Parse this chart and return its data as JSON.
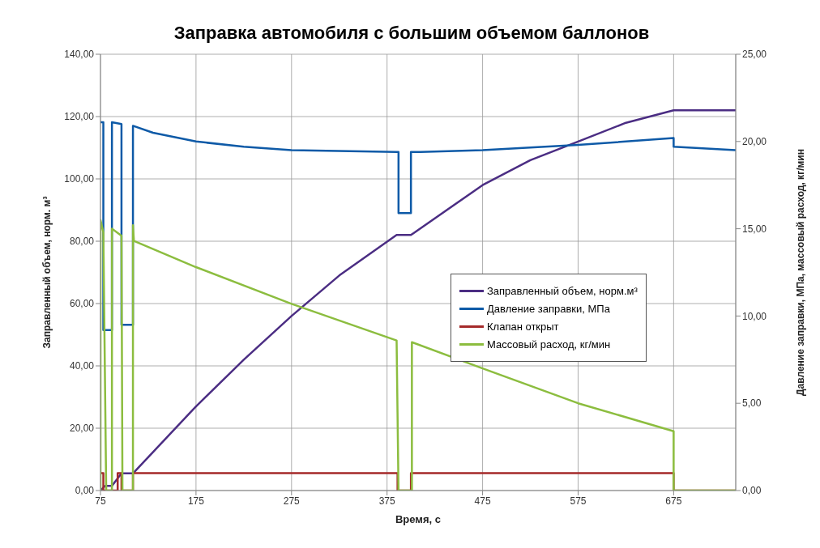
{
  "chart_data": {
    "type": "line",
    "title": "Заправка автомобиля с большим объемом баллонов",
    "xlabel": "Время, с",
    "ylabel": "Заправленный объем, норм. м³",
    "y2label": "Давление заправки, МПа, массовый расход, кг/мин",
    "xlim": [
      75,
      740
    ],
    "xticks": [
      75,
      175,
      275,
      375,
      475,
      575,
      675
    ],
    "ylim": [
      0,
      140
    ],
    "yticks": [
      {
        "value": 0,
        "label": "0,00"
      },
      {
        "value": 20,
        "label": "20,00"
      },
      {
        "value": 40,
        "label": "40,00"
      },
      {
        "value": 60,
        "label": "60,00"
      },
      {
        "value": 80,
        "label": "80,00"
      },
      {
        "value": 100,
        "label": "100,00"
      },
      {
        "value": 120,
        "label": "120,00"
      },
      {
        "value": 140,
        "label": "140,00"
      }
    ],
    "y2lim": [
      0,
      25
    ],
    "y2ticks": [
      {
        "value": 0,
        "label": "0,00"
      },
      {
        "value": 5,
        "label": "5,00"
      },
      {
        "value": 10,
        "label": "10,00"
      },
      {
        "value": 15,
        "label": "15,00"
      },
      {
        "value": 20,
        "label": "20,00"
      },
      {
        "value": 25,
        "label": "25,00"
      }
    ],
    "grid": true,
    "legend": "right",
    "marker": "none",
    "line_style": "solid",
    "series": [
      {
        "name": "Заправленный объем, норм.м³",
        "color": "#4b2d83",
        "x": [
          75,
          80,
          87,
          97,
          109,
          175,
          225,
          275,
          325,
          385,
          400,
          475,
          525,
          575,
          625,
          675,
          740
        ],
        "values": [
          0,
          1.5,
          1.5,
          5.5,
          5.5,
          27,
          42,
          56,
          69,
          82,
          82,
          98,
          106,
          112,
          118,
          122,
          122
        ]
      },
      {
        "name": "Давление заправки, МПа",
        "color": "#0e5aa7",
        "axis": "y2",
        "x": [
          75,
          78,
          78,
          87,
          87,
          97,
          97,
          109,
          109,
          130,
          175,
          225,
          275,
          385,
          387,
          387,
          400,
          400,
          410,
          475,
          575,
          675,
          675,
          740
        ],
        "values": [
          21.1,
          21.1,
          9.2,
          9.2,
          21.1,
          21.0,
          9.5,
          9.5,
          20.9,
          20.5,
          20.0,
          19.7,
          19.5,
          19.4,
          19.4,
          15.9,
          15.9,
          19.4,
          19.4,
          19.5,
          19.8,
          20.2,
          19.7,
          19.5
        ]
      },
      {
        "name": "Клапан открыт",
        "color": "#a52a2a",
        "axis": "y2",
        "x": [
          75,
          78,
          78,
          93,
          93,
          97,
          97,
          109,
          109,
          386,
          386,
          400,
          400,
          675,
          675,
          740
        ],
        "values": [
          1,
          1,
          0,
          0,
          1,
          1,
          0,
          0,
          1,
          1,
          0,
          0,
          1,
          1,
          0,
          0
        ]
      },
      {
        "name": "Массовый расход, кг/мин",
        "color": "#8cbd3f",
        "axis": "y2",
        "x": [
          75,
          75,
          78,
          81,
          87,
          87,
          97,
          98,
          109,
          109,
          110,
          175,
          275,
          385,
          387,
          401,
          401,
          475,
          575,
          675,
          675,
          740
        ],
        "values": [
          0,
          15.5,
          14.8,
          0,
          0,
          15.0,
          14.6,
          0,
          0,
          15.2,
          14.3,
          12.8,
          10.7,
          8.6,
          0,
          0,
          8.5,
          7.0,
          5.0,
          3.4,
          0,
          0
        ]
      }
    ]
  }
}
